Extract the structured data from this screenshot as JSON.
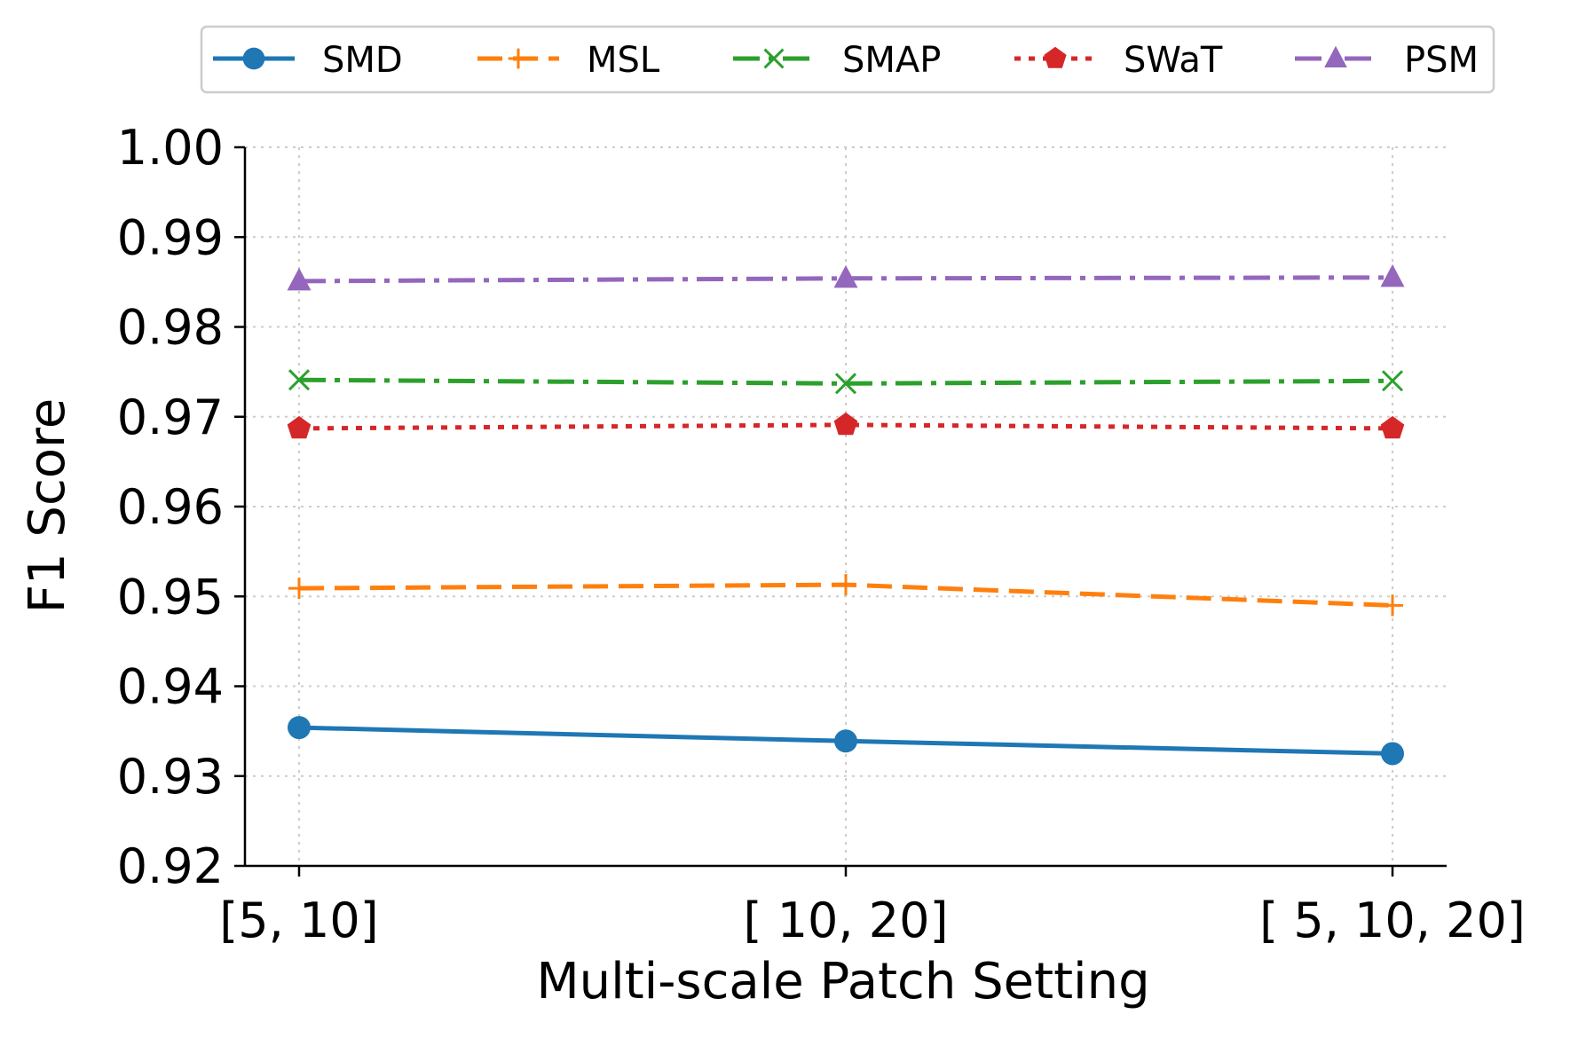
{
  "chart_data": {
    "type": "line",
    "title": "",
    "xlabel": "Multi-scale Patch Setting",
    "ylabel": "F1 Score",
    "categories": [
      "[5, 10]",
      "[ 10, 20]",
      "[ 5, 10, 20]"
    ],
    "ylim": [
      0.92,
      1.0
    ],
    "yticks": [
      "0.92",
      "0.93",
      "0.94",
      "0.95",
      "0.96",
      "0.97",
      "0.98",
      "0.99",
      "1.00"
    ],
    "grid": true,
    "legend_position": "top",
    "series": [
      {
        "name": "SMD",
        "values": [
          0.9354,
          0.9339,
          0.9325
        ],
        "color": "#1f77b4",
        "marker": "circle",
        "linestyle": "solid"
      },
      {
        "name": "MSL",
        "values": [
          0.9509,
          0.9513,
          0.949
        ],
        "color": "#ff7f0e",
        "marker": "plus",
        "linestyle": "dashed"
      },
      {
        "name": "SMAP",
        "values": [
          0.9741,
          0.9737,
          0.974
        ],
        "color": "#2ca02c",
        "marker": "x",
        "linestyle": "dashdot"
      },
      {
        "name": "SWaT",
        "values": [
          0.9687,
          0.9691,
          0.9687
        ],
        "color": "#d62728",
        "marker": "pentagon",
        "linestyle": "dotted"
      },
      {
        "name": "PSM",
        "values": [
          0.9851,
          0.9854,
          0.9855
        ],
        "color": "#9467bd",
        "marker": "triangle",
        "linestyle": "dashdot"
      }
    ]
  }
}
